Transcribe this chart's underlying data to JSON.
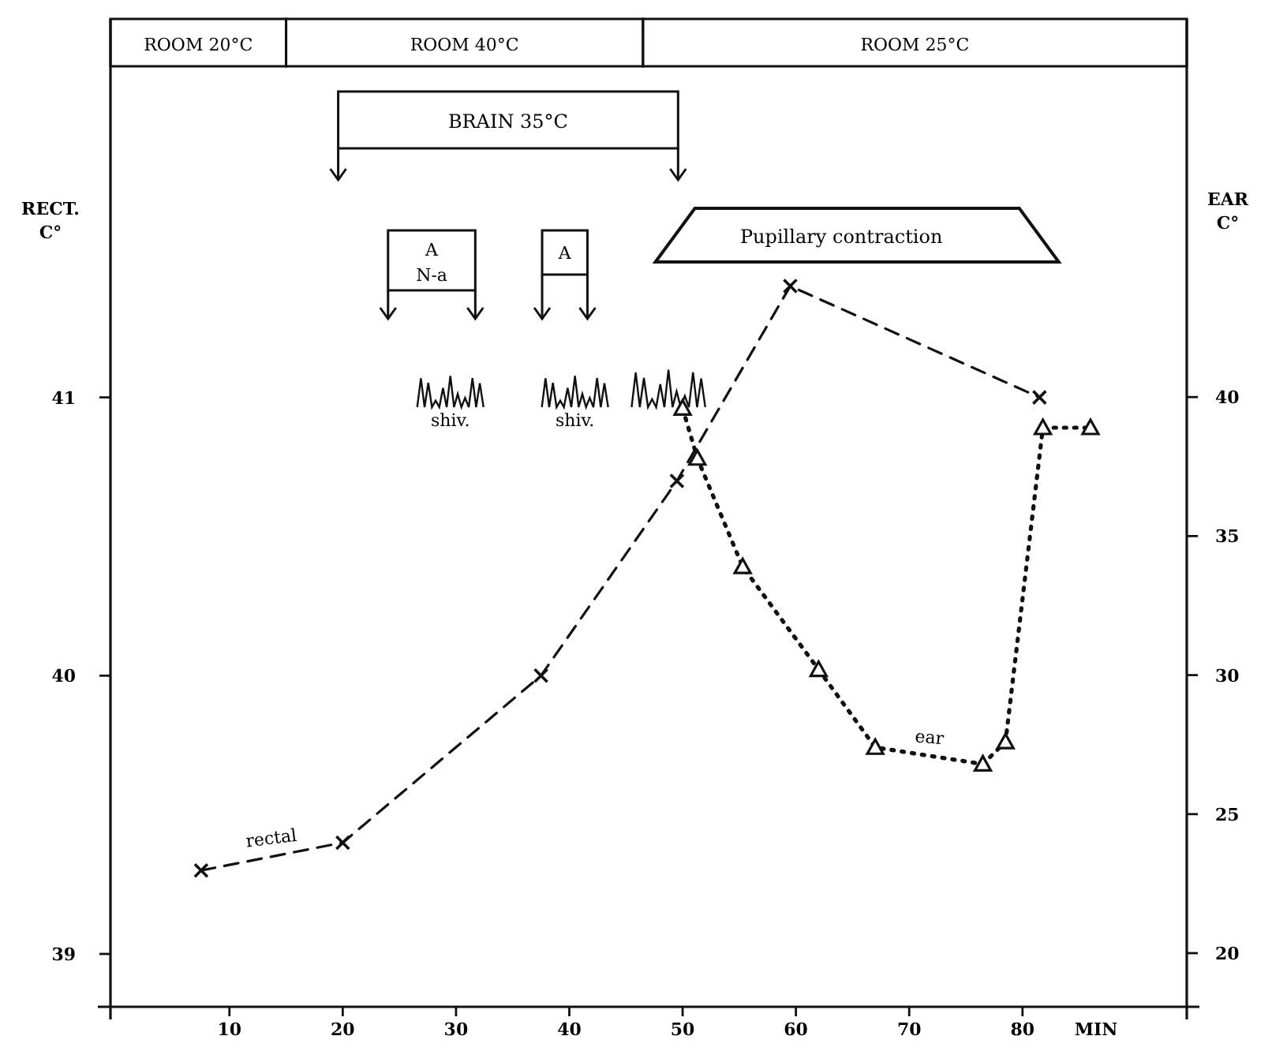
{
  "chart_data": {
    "type": "line",
    "xlabel": "MIN",
    "ylabel": "RECT. C°",
    "y2label": "EAR C°",
    "xlim": [
      -0.5,
      94.5
    ],
    "xticks": [
      10,
      20,
      30,
      40,
      50,
      60,
      70,
      80
    ],
    "ylim": [
      38.81,
      42.36
    ],
    "yticks": [
      39,
      40,
      41
    ],
    "y2lim": [
      18.07,
      53.6
    ],
    "y2ticks": [
      20,
      25,
      30,
      35,
      40
    ],
    "series": [
      {
        "name": "rectal",
        "color": "#111111",
        "marker": "cross",
        "line_style": "dashed",
        "x": [
          7.5,
          20,
          37.5,
          49.5,
          59.5,
          81.5
        ],
        "values": [
          39.3,
          39.4,
          40.0,
          40.7,
          41.4,
          41.0
        ]
      },
      {
        "name": "ear",
        "color": "#111111",
        "marker": "triangle",
        "line_style": "dotted",
        "axis": "y2",
        "x": [
          50,
          51.3,
          55.3,
          62,
          67,
          76.5,
          78.5,
          81.8,
          86
        ],
        "values": [
          39.6,
          37.8,
          33.9,
          30.2,
          27.4,
          26.8,
          27.6,
          38.9,
          38.9
        ]
      }
    ],
    "annotations": [
      "ROOM 20°C",
      "ROOM 40°C",
      "ROOM 25°C",
      "BRAIN 35°C",
      "A",
      "N-a",
      "A",
      "Pupillary contraction",
      "shiv.",
      "shiv."
    ]
  }
}
